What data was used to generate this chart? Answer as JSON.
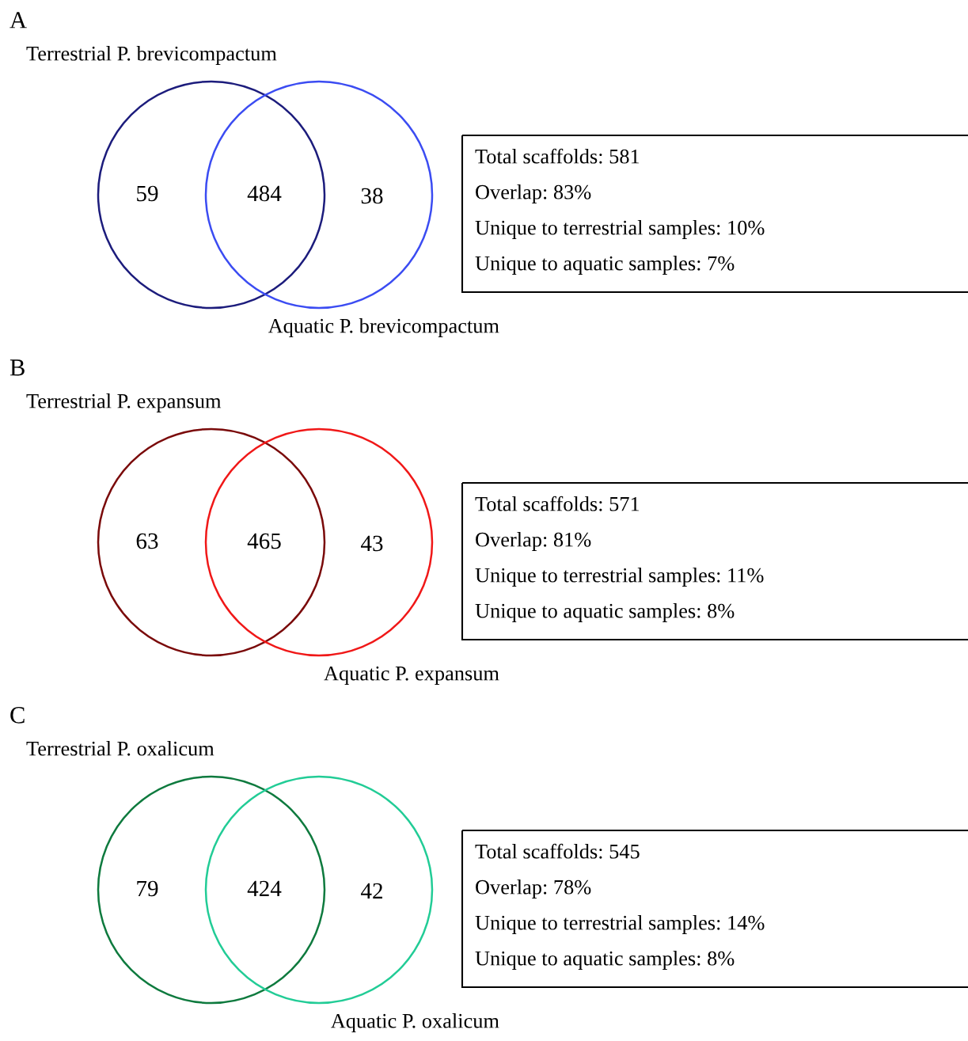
{
  "chart_data": [
    {
      "type": "other",
      "title": "A",
      "categories": [
        null,
        null,
        null
      ],
      "values": [
        59,
        484,
        38
      ],
      "data_labels": true,
      "colors": [
        "#1c1c7c",
        "#000000",
        "#3b4cf2"
      ],
      "annotations": [
        "Terrestrial P. brevicompactum",
        "Aquatic P. brevicompactum",
        "Total scaffolds: 581",
        "Overlap: 83%",
        "Unique to terrestrial samples: 10%",
        "Unique to aquatic samples: 7%"
      ]
    },
    {
      "type": "other",
      "title": "B",
      "categories": [
        null,
        null,
        null
      ],
      "values": [
        63,
        465,
        43
      ],
      "data_labels": true,
      "colors": [
        "#7a0a0a",
        "#000000",
        "#f01818"
      ],
      "annotations": [
        "Terrestrial P. expansum",
        "Aquatic P. expansum",
        "Total scaffolds: 571",
        "Overlap: 81%",
        "Unique to terrestrial samples: 11%",
        "Unique to aquatic samples: 8%"
      ]
    },
    {
      "type": "other",
      "title": "C",
      "categories": [
        null,
        null,
        null
      ],
      "values": [
        79,
        424,
        42
      ],
      "data_labels": true,
      "colors": [
        "#0e7a3e",
        "#000000",
        "#22cc96"
      ],
      "annotations": [
        "Terrestrial P. oxalicum",
        "Aquatic P. oxalicum",
        "Total scaffolds: 545",
        "Overlap: 78%",
        "Unique to terrestrial samples: 14%",
        "Unique to aquatic samples: 8%"
      ]
    }
  ]
}
